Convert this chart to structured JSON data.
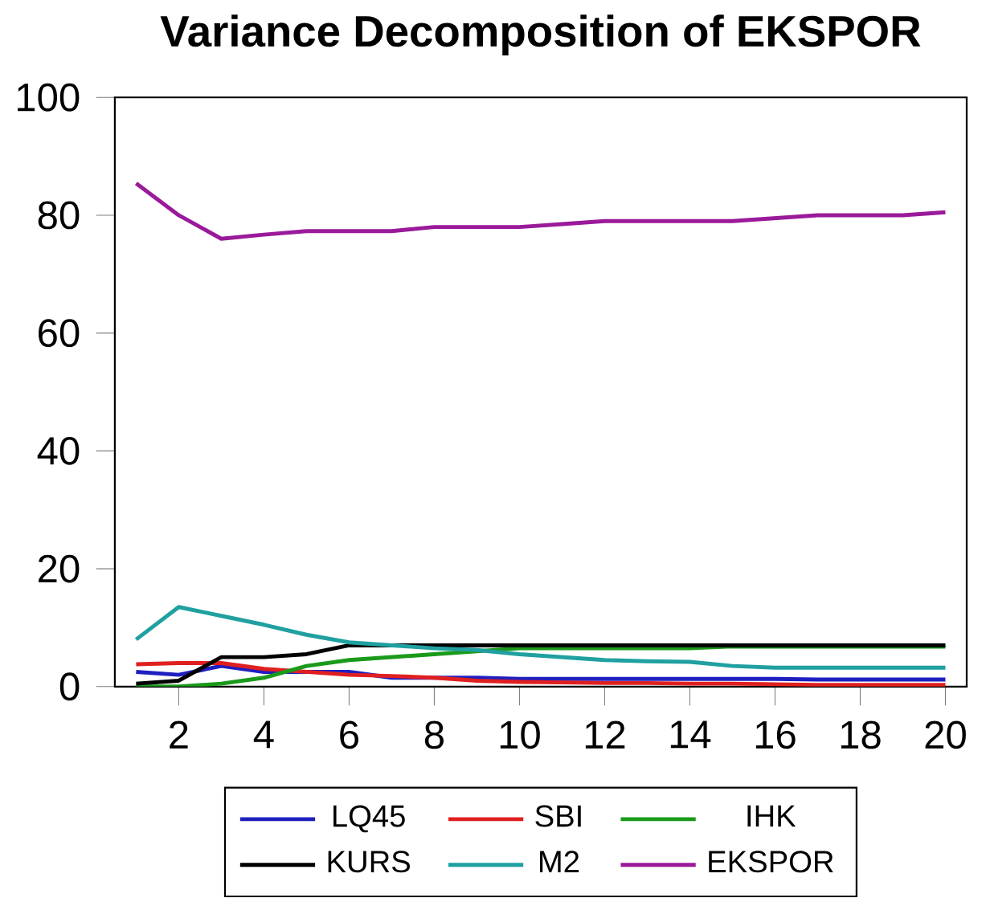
{
  "chart_data": {
    "type": "line",
    "title": "Variance Decomposition of EKSPOR",
    "x": [
      1,
      2,
      3,
      4,
      5,
      6,
      7,
      8,
      9,
      10,
      11,
      12,
      13,
      14,
      15,
      16,
      17,
      18,
      19,
      20
    ],
    "xlim": [
      0.5,
      20.5
    ],
    "xticks": [
      2,
      4,
      6,
      8,
      10,
      12,
      14,
      16,
      18,
      20
    ],
    "ylim": [
      0,
      100
    ],
    "yticks": [
      0,
      20,
      40,
      60,
      80,
      100
    ],
    "legend": "bottom",
    "grid": false,
    "series": [
      {
        "name": "LQ45",
        "color": "#1f1fbf",
        "values": [
          2.5,
          2,
          3.5,
          2.5,
          2.5,
          2.5,
          1.5,
          1.5,
          1.5,
          1.3,
          1.3,
          1.3,
          1.3,
          1.3,
          1.3,
          1.3,
          1.2,
          1.2,
          1.2,
          1.2
        ]
      },
      {
        "name": "SBI",
        "color": "#e02020",
        "values": [
          3.8,
          4,
          4,
          3,
          2.5,
          2,
          1.8,
          1.5,
          1,
          0.8,
          0.7,
          0.6,
          0.6,
          0.5,
          0.5,
          0.4,
          0.3,
          0.3,
          0.3,
          0.3
        ]
      },
      {
        "name": "IHK",
        "color": "#1a9a1a",
        "values": [
          0,
          0,
          0.5,
          1.5,
          3.5,
          4.5,
          5,
          5.5,
          6,
          6.5,
          6.5,
          6.5,
          6.5,
          6.5,
          6.8,
          6.8,
          6.8,
          6.8,
          6.8,
          6.8
        ]
      },
      {
        "name": "KURS",
        "color": "#000000",
        "values": [
          0.5,
          1,
          5,
          5,
          5.5,
          7,
          7,
          7,
          7,
          7,
          7,
          7,
          7,
          7,
          7,
          7,
          7,
          7,
          7,
          7
        ]
      },
      {
        "name": "M2",
        "color": "#20a0a0",
        "values": [
          8,
          13.5,
          12,
          10.5,
          8.8,
          7.5,
          7,
          6.5,
          6.2,
          5.5,
          5,
          4.5,
          4.3,
          4.2,
          3.5,
          3.2,
          3.2,
          3.2,
          3.2,
          3.2
        ]
      },
      {
        "name": "EKSPOR",
        "color": "#9a1a9a",
        "values": [
          85.4,
          80,
          76,
          76.7,
          77.3,
          77.3,
          77.3,
          78,
          78,
          78,
          78.5,
          79,
          79,
          79,
          79,
          79.5,
          80,
          80,
          80,
          80.5
        ]
      }
    ]
  }
}
